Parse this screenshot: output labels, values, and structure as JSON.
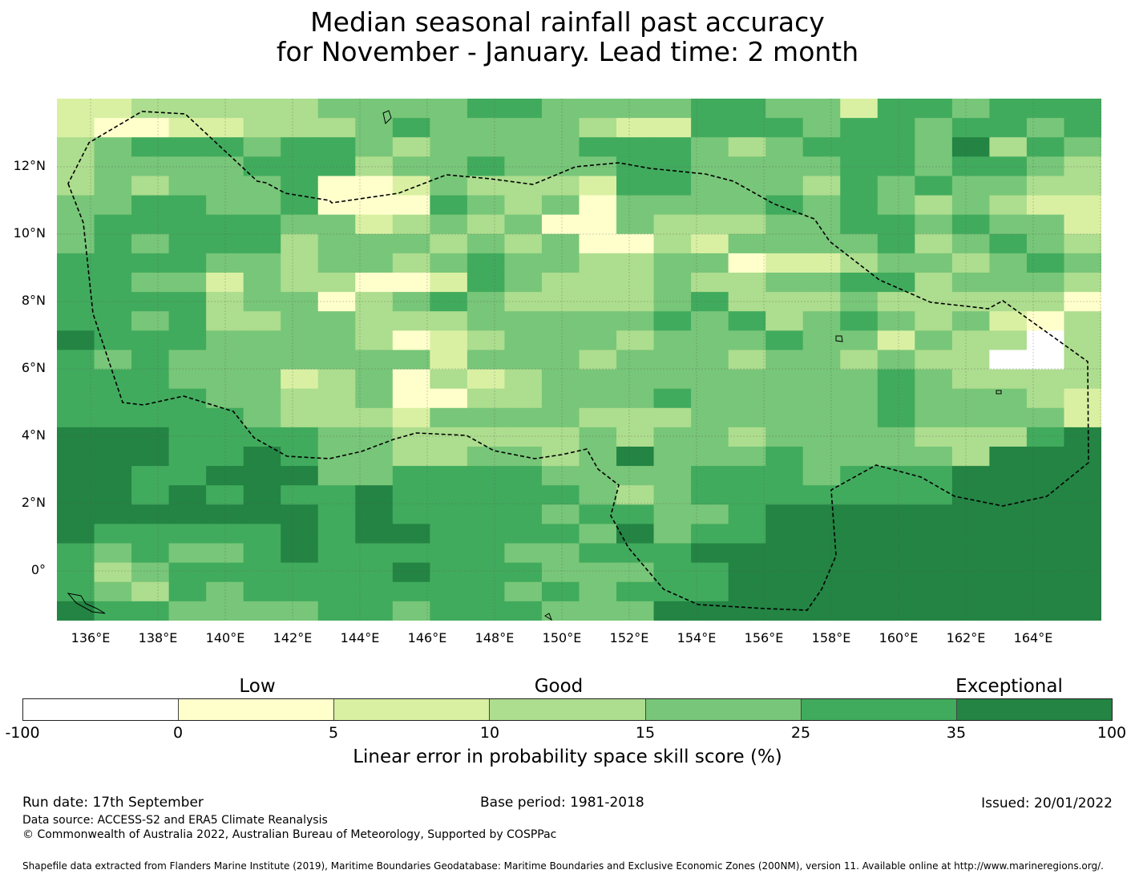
{
  "title": {
    "line1": "Median seasonal rainfall past accuracy",
    "line2": "for November - January. Lead time: 2 month"
  },
  "map": {
    "lat_labels": [
      "12°N",
      "10°N",
      "8°N",
      "6°N",
      "4°N",
      "2°N",
      "0°"
    ],
    "lon_labels": [
      "136°E",
      "138°E",
      "140°E",
      "142°E",
      "144°E",
      "146°E",
      "148°E",
      "150°E",
      "152°E",
      "154°E",
      "156°E",
      "158°E",
      "160°E",
      "162°E",
      "164°E"
    ],
    "grid_rows": [
      "2233333444455444455442554555",
      "2112233345444432255545545545",
      "3455545543444455543455546354",
      "3444455534454445544445545543",
      "3434445112433325544435454433",
      "4455445111543414444545434322",
      "4555554423434114333445545442",
      "4545553444343411324444534543",
      "5555443443454433441223443454",
      "5544243311254333433445534443",
      "5555344134543333453334333331",
      "5545334433344444545345434213",
      "6555444431234443444544243303",
      "5454444444244434443443433003",
      "5554442341323444444444543333",
      "5555443341133444544444544432",
      "5555543332444433344444544442",
      "6665555443333343443444433356",
      "6665565443344346444544443666",
      "6655666445555444455545556666",
      "6656565565555543455555556666",
      "6666666565555455445666666666",
      "6555556566555546455666666666",
      "5454456555554455566666666666",
      "5345555556555444556666666666",
      "5435455555554545556666666666",
      "6554444554555444666666666666"
    ]
  },
  "colorbar": {
    "segments": [
      "#ffffff",
      "#ffffcc",
      "#d9f0a3",
      "#addd8e",
      "#78c679",
      "#41ab5d",
      "#238443"
    ],
    "ticks": [
      "-100",
      "0",
      "5",
      "10",
      "15",
      "25",
      "35",
      "100"
    ],
    "categories": [
      "Low",
      "Good",
      "Exceptional"
    ],
    "label": "Linear error in probability space skill score (%)"
  },
  "footer": {
    "run_date": "Run date: 17th September",
    "base_period": "Base period: 1981-2018",
    "issued": "Issued: 20/01/2022",
    "data_source": "Data source: ACCESS-S2 and ERA5 Climate Reanalysis",
    "copyright": "© Commonwealth of Australia 2022, Australian Bureau of Meteorology, Supported by COSPPac",
    "shapefile": "Shapefile data extracted from Flanders Marine Institute (2019), Maritime Boundaries Geodatabase: Maritime Boundaries and Exclusive Economic Zones (200NM), version 11. Available online at http://www.marineregions.org/."
  }
}
